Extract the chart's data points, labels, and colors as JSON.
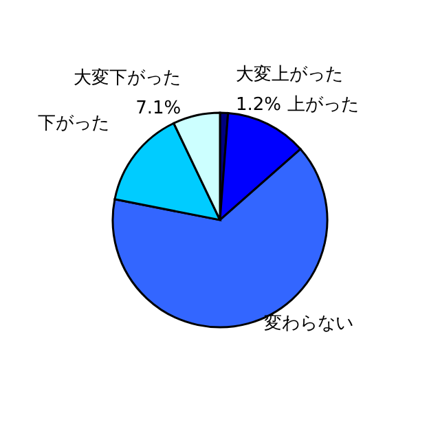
{
  "chart_data": {
    "type": "pie",
    "categories": [
      "大変上がった",
      "上がった",
      "変わらない",
      "下がった",
      "大変下がった"
    ],
    "values": [
      1.2,
      12.3,
      64.6,
      14.8,
      7.1
    ],
    "colors": [
      "#000080",
      "#0000ff",
      "#3366ff",
      "#00ccff",
      "#ccffff"
    ],
    "value_labels": [
      "1.2%",
      null,
      null,
      null,
      "7.1%"
    ]
  }
}
